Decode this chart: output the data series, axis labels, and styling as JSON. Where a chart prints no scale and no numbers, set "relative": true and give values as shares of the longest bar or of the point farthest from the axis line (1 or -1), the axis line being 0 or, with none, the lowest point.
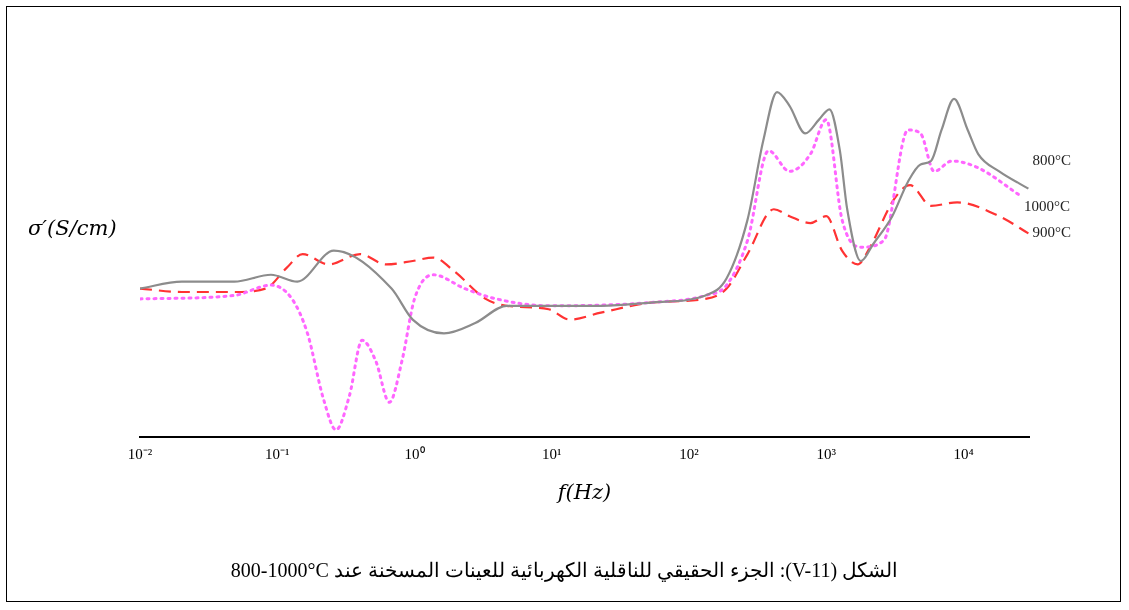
{
  "chart_data": {
    "type": "line",
    "relative": true,
    "log": "x",
    "xlabel": "f(Hz)",
    "ylabel": "σ′(S/cm)",
    "xlim": [
      0.01,
      30000
    ],
    "xticks": [
      {
        "value": 0.01,
        "label": "10⁻²"
      },
      {
        "value": 0.1,
        "label": "10⁻¹"
      },
      {
        "value": 1,
        "label": "10⁰"
      },
      {
        "value": 10,
        "label": "10¹"
      },
      {
        "value": 100,
        "label": "10²"
      },
      {
        "value": 1000,
        "label": "10³"
      },
      {
        "value": 10000,
        "label": "10⁴"
      }
    ],
    "grid": false,
    "legend": false,
    "series": [
      {
        "name": "800°C",
        "color": "#8c8c8c",
        "line_style": "solid",
        "x": [
          0.01,
          0.0202,
          0.0486,
          0.09,
          0.14,
          0.258,
          0.68,
          0.97,
          1.64,
          2.77,
          4.7,
          9.5,
          22.8,
          55,
          132,
          188,
          267,
          348,
          438,
          540,
          703,
          885,
          1055,
          1257,
          1421,
          1786,
          2206,
          3027,
          3939,
          4862,
          5797,
          6918,
          8535,
          10730,
          12800,
          18190,
          29700
        ],
        "values": [
          0.43,
          0.45,
          0.45,
          0.47,
          0.45,
          0.54,
          0.43,
          0.34,
          0.3,
          0.33,
          0.38,
          0.38,
          0.38,
          0.39,
          0.41,
          0.46,
          0.63,
          0.86,
          1.0,
          0.96,
          0.88,
          0.92,
          0.95,
          0.83,
          0.66,
          0.51,
          0.56,
          0.64,
          0.74,
          0.79,
          0.8,
          0.89,
          0.98,
          0.89,
          0.82,
          0.77,
          0.72
        ]
      },
      {
        "name": "1000°C",
        "color": "#ff66ff",
        "line_style": "dotted",
        "x": [
          0.01,
          0.0486,
          0.09,
          0.128,
          0.166,
          0.217,
          0.268,
          0.336,
          0.415,
          0.522,
          0.656,
          0.81,
          1.0,
          1.37,
          2.32,
          3.94,
          9.5,
          55,
          132,
          188,
          267,
          380,
          540,
          767,
          1000,
          1303,
          1786,
          2630,
          3939,
          4862,
          6110,
          8240,
          12800,
          25800
        ],
        "values": [
          0.4,
          0.41,
          0.44,
          0.4,
          0.3,
          0.11,
          0.02,
          0.12,
          0.28,
          0.22,
          0.1,
          0.22,
          0.4,
          0.47,
          0.43,
          0.4,
          0.38,
          0.39,
          0.41,
          0.44,
          0.57,
          0.83,
          0.77,
          0.82,
          0.92,
          0.63,
          0.55,
          0.57,
          0.89,
          0.88,
          0.77,
          0.8,
          0.78,
          0.7
        ]
      },
      {
        "name": "900°C",
        "color": "#ff3333",
        "line_style": "dashed",
        "x": [
          0.01,
          0.0202,
          0.0486,
          0.0824,
          0.117,
          0.153,
          0.237,
          0.401,
          0.622,
          0.97,
          1.37,
          1.95,
          3.3,
          4.7,
          9.5,
          13.5,
          22.8,
          55,
          132,
          188,
          267,
          415,
          540,
          767,
          1000,
          1303,
          1695,
          2020,
          3130,
          4080,
          5797,
          9000,
          18190,
          29700
        ],
        "values": [
          0.43,
          0.42,
          0.42,
          0.43,
          0.49,
          0.53,
          0.5,
          0.53,
          0.5,
          0.51,
          0.52,
          0.48,
          0.4,
          0.38,
          0.37,
          0.34,
          0.36,
          0.39,
          0.4,
          0.43,
          0.53,
          0.66,
          0.64,
          0.62,
          0.64,
          0.54,
          0.5,
          0.54,
          0.69,
          0.73,
          0.67,
          0.68,
          0.64,
          0.59
        ]
      }
    ],
    "annotations": [
      "الشكل (V-11): الجزء الحقيقي للناقلية الكهربائية للعينات المسخنة عند 800-1000°C"
    ]
  }
}
